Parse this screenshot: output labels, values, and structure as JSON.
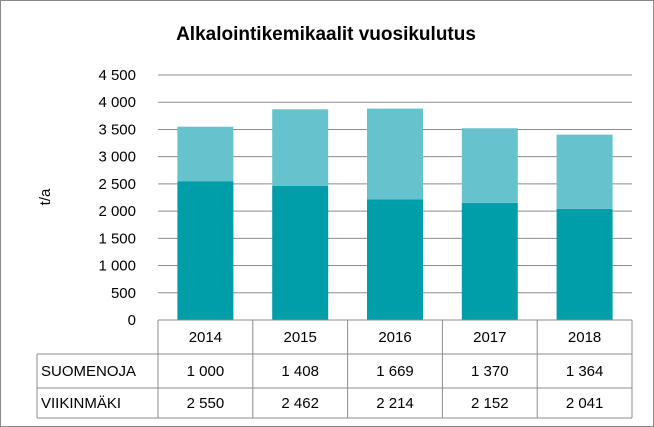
{
  "chart_data": {
    "type": "bar",
    "stacked": true,
    "title": "Alkalointikemikaalit vuosikulutus",
    "ylabel": "t/a",
    "xlabel": "",
    "ylim": [
      0,
      4500
    ],
    "yticks": [
      0,
      500,
      1000,
      1500,
      2000,
      2500,
      3000,
      3500,
      4000,
      4500
    ],
    "ytick_labels": [
      "0",
      "500",
      "1 000",
      "1 500",
      "2 000",
      "2 500",
      "3 000",
      "3 500",
      "4 000",
      "4 500"
    ],
    "grid": true,
    "legend": "data-table",
    "categories": [
      "2014",
      "2015",
      "2016",
      "2017",
      "2018"
    ],
    "series": [
      {
        "name": "SUOMENOJA",
        "values": [
          1000,
          1408,
          1669,
          1370,
          1364
        ],
        "labels": [
          "1 000",
          "1 408",
          "1 669",
          "1 370",
          "1 364"
        ],
        "color": "#66C2CC"
      },
      {
        "name": "VIIKINMÄKI",
        "values": [
          2550,
          2462,
          2214,
          2152,
          2041
        ],
        "labels": [
          "2 550",
          "2 462",
          "2 214",
          "2 152",
          "2 041"
        ],
        "color": "#009EA8"
      }
    ]
  }
}
